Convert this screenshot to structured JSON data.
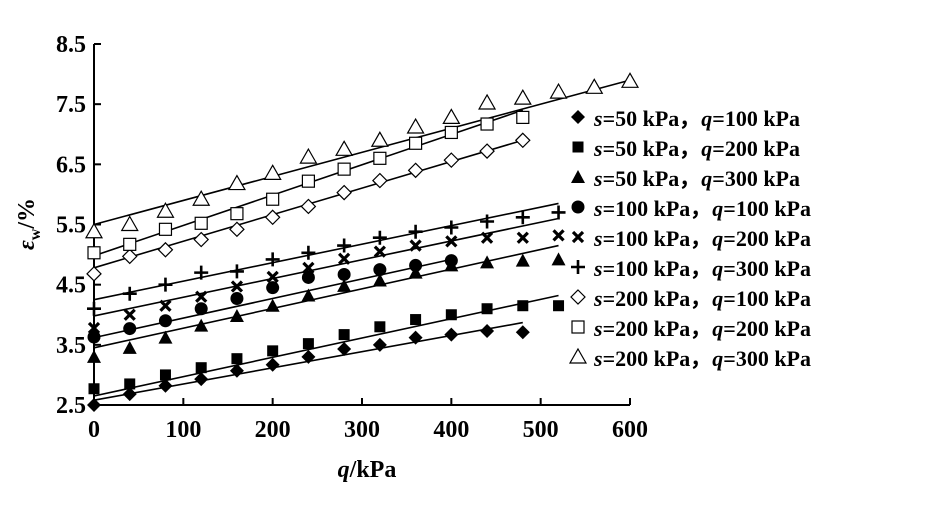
{
  "chart_data": {
    "type": "scatter",
    "title": "",
    "xlabel_var": "q",
    "xlabel_unit": "/kPa",
    "ylabel_var": "ε",
    "ylabel_sub": "w",
    "ylabel_unit": "/%",
    "xlim": [
      0,
      600
    ],
    "ylim": [
      2.5,
      8.5
    ],
    "xticks": [
      0,
      100,
      200,
      300,
      400,
      500,
      600
    ],
    "yticks": [
      2.5,
      3.5,
      4.5,
      5.5,
      6.5,
      7.5,
      8.5
    ],
    "xtick_labels": [
      "0",
      "100",
      "200",
      "300",
      "400",
      "500",
      "600"
    ],
    "ytick_labels": [
      "2.5",
      "3.5",
      "4.5",
      "5.5",
      "6.5",
      "7.5",
      "8.5"
    ],
    "grid": false,
    "legend_position": "right",
    "series": [
      {
        "name": "s=50 kPa，q=100 kPa",
        "legend": {
          "s_var": "s",
          "s_text": "=50 kPa，",
          "q_var": "q",
          "q_text": "=100 kPa"
        },
        "marker": "diamond-filled",
        "x": [
          0,
          40,
          80,
          120,
          160,
          200,
          240,
          280,
          320,
          360,
          400,
          440,
          480
        ],
        "y": [
          2.5,
          2.68,
          2.82,
          2.93,
          3.07,
          3.17,
          3.3,
          3.43,
          3.5,
          3.62,
          3.67,
          3.73,
          3.71
        ],
        "fit": [
          2.58,
          3.87
        ]
      },
      {
        "name": "s=50 kPa，q=200 kPa",
        "legend": {
          "s_var": "s",
          "s_text": "=50 kPa，",
          "q_var": "q",
          "q_text": "=200 kPa"
        },
        "marker": "square-filled",
        "x": [
          0,
          40,
          80,
          120,
          160,
          200,
          240,
          280,
          320,
          360,
          400,
          440,
          480,
          520
        ],
        "y": [
          2.77,
          2.85,
          3.0,
          3.12,
          3.27,
          3.4,
          3.52,
          3.67,
          3.8,
          3.92,
          4.0,
          4.1,
          4.15,
          4.15
        ],
        "fit": [
          2.65,
          4.32
        ]
      },
      {
        "name": "s=50 kPa，q=300 kPa",
        "legend": {
          "s_var": "s",
          "s_text": "=50 kPa，",
          "q_var": "q",
          "q_text": "=300 kPa"
        },
        "marker": "triangle-filled",
        "x": [
          0,
          40,
          80,
          120,
          160,
          200,
          240,
          280,
          320,
          360,
          400,
          440,
          480,
          520
        ],
        "y": [
          3.3,
          3.45,
          3.62,
          3.82,
          3.98,
          4.15,
          4.32,
          4.48,
          4.57,
          4.7,
          4.82,
          4.87,
          4.9,
          4.92
        ],
        "fit": [
          3.45,
          5.15
        ]
      },
      {
        "name": "s=100 kPa，q=100 kPa",
        "legend": {
          "s_var": "s",
          "s_text": "=100 kPa，",
          "q_var": "q",
          "q_text": "=100 kPa"
        },
        "marker": "circle-filled",
        "x": [
          0,
          40,
          80,
          120,
          160,
          200,
          240,
          280,
          320,
          360,
          400
        ],
        "y": [
          3.63,
          3.77,
          3.9,
          4.1,
          4.27,
          4.45,
          4.62,
          4.67,
          4.75,
          4.82,
          4.9
        ],
        "fit": [
          3.62,
          4.92
        ]
      },
      {
        "name": "s=100 kPa，q=200 kPa",
        "legend": {
          "s_var": "s",
          "s_text": "=100 kPa，",
          "q_var": "q",
          "q_text": "=200 kPa"
        },
        "marker": "x",
        "x": [
          0,
          40,
          80,
          120,
          160,
          200,
          240,
          280,
          320,
          360,
          400,
          440,
          480,
          520
        ],
        "y": [
          3.78,
          4.0,
          4.15,
          4.3,
          4.47,
          4.63,
          4.78,
          4.93,
          5.05,
          5.15,
          5.22,
          5.28,
          5.28,
          5.32
        ],
        "fit": [
          3.98,
          5.6
        ]
      },
      {
        "name": "s=100 kPa，q=300 kPa",
        "legend": {
          "s_var": "s",
          "s_text": "=100 kPa，",
          "q_var": "q",
          "q_text": "=300 kPa"
        },
        "marker": "plus",
        "x": [
          0,
          40,
          80,
          120,
          160,
          200,
          240,
          280,
          320,
          360,
          400,
          440,
          480,
          520
        ],
        "y": [
          4.1,
          4.35,
          4.5,
          4.7,
          4.72,
          4.92,
          5.03,
          5.15,
          5.28,
          5.38,
          5.45,
          5.55,
          5.62,
          5.7
        ],
        "fit": [
          4.25,
          5.85
        ]
      },
      {
        "name": "s=200 kPa，q=100 kPa",
        "legend": {
          "s_var": "s",
          "s_text": "=200 kPa，",
          "q_var": "q",
          "q_text": "=100 kPa"
        },
        "marker": "diamond-open",
        "x": [
          0,
          40,
          80,
          120,
          160,
          200,
          240,
          280,
          320,
          360,
          400,
          440,
          480
        ],
        "y": [
          4.68,
          4.97,
          5.08,
          5.25,
          5.42,
          5.62,
          5.8,
          6.03,
          6.23,
          6.4,
          6.57,
          6.72,
          6.9
        ],
        "fit": [
          4.78,
          6.9
        ]
      },
      {
        "name": "s=200 kPa，q=200 kPa",
        "legend": {
          "s_var": "s",
          "s_text": "=200 kPa，",
          "q_var": "q",
          "q_text": "=200 kPa"
        },
        "marker": "square-open",
        "x": [
          0,
          40,
          80,
          120,
          160,
          200,
          240,
          280,
          320,
          360,
          400,
          440,
          480
        ],
        "y": [
          5.03,
          5.17,
          5.42,
          5.52,
          5.68,
          5.92,
          6.22,
          6.42,
          6.6,
          6.85,
          7.03,
          7.17,
          7.28
        ],
        "fit": [
          4.98,
          7.4
        ]
      },
      {
        "name": "s=200 kPa，q=300 kPa",
        "legend": {
          "s_var": "s",
          "s_text": "=200 kPa，",
          "q_var": "q",
          "q_text": "=300 kPa"
        },
        "marker": "triangle-open",
        "x": [
          0,
          40,
          80,
          120,
          160,
          200,
          240,
          280,
          320,
          360,
          400,
          440,
          480,
          520,
          560,
          600
        ],
        "y": [
          5.38,
          5.5,
          5.72,
          5.92,
          6.18,
          6.35,
          6.62,
          6.75,
          6.9,
          7.12,
          7.28,
          7.52,
          7.6,
          7.7,
          7.78,
          7.88
        ],
        "fit": [
          5.5,
          7.9
        ]
      }
    ]
  }
}
